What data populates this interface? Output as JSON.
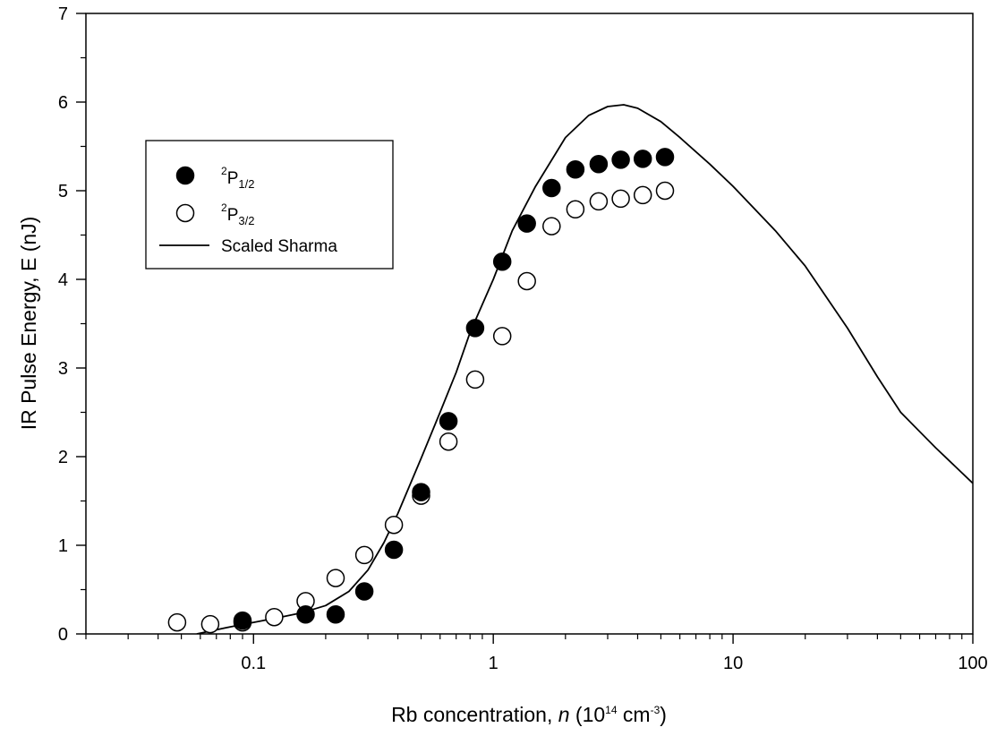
{
  "chart_data": {
    "type": "scatter",
    "xlabel": {
      "pre": "Rb concentration, ",
      "italic": "n",
      "open": " (10",
      "sup1": "14",
      "mid": " cm",
      "sup2": "-3",
      "close": ")"
    },
    "ylabel": "IR Pulse Energy, E (nJ)",
    "x_scale": "log",
    "xlim": [
      0.02,
      100
    ],
    "ylim": [
      0,
      7
    ],
    "x_ticks": [
      {
        "value": 0.1,
        "label": "0.1"
      },
      {
        "value": 1,
        "label": "1"
      },
      {
        "value": 10,
        "label": "10"
      },
      {
        "value": 100,
        "label": "100"
      }
    ],
    "y_ticks": [
      {
        "value": 0,
        "label": "0"
      },
      {
        "value": 1,
        "label": "1"
      },
      {
        "value": 2,
        "label": "2"
      },
      {
        "value": 3,
        "label": "3"
      },
      {
        "value": 4,
        "label": "4"
      },
      {
        "value": 5,
        "label": "5"
      },
      {
        "value": 6,
        "label": "6"
      },
      {
        "value": 7,
        "label": "7"
      }
    ],
    "grid": false,
    "legend_position": "top-left",
    "series": [
      {
        "label": {
          "base": "P",
          "sup": "2",
          "sub": "1/2"
        },
        "marker": "filled-circle",
        "x": [
          0.09,
          0.165,
          0.22,
          0.29,
          0.385,
          0.5,
          0.65,
          0.84,
          1.09,
          1.38,
          1.75,
          2.2,
          2.75,
          3.4,
          4.2,
          5.2
        ],
        "y": [
          0.15,
          0.22,
          0.22,
          0.48,
          0.95,
          1.6,
          2.4,
          3.45,
          4.2,
          4.63,
          5.03,
          5.24,
          5.3,
          5.35,
          5.36,
          5.38
        ]
      },
      {
        "label": {
          "base": "P",
          "sup": "2",
          "sub": "3/2"
        },
        "marker": "open-circle",
        "x": [
          0.048,
          0.066,
          0.09,
          0.122,
          0.165,
          0.22,
          0.29,
          0.385,
          0.5,
          0.65,
          0.84,
          1.09,
          1.38,
          1.75,
          2.2,
          2.75,
          3.4,
          4.2,
          5.2
        ],
        "y": [
          0.13,
          0.11,
          0.13,
          0.19,
          0.37,
          0.63,
          0.89,
          1.23,
          1.56,
          2.17,
          2.87,
          3.36,
          3.98,
          4.6,
          4.79,
          4.88,
          4.91,
          4.95,
          5.0
        ]
      },
      {
        "label": {
          "text": "Scaled Sharma"
        },
        "marker": "line",
        "x": [
          0.058,
          0.08,
          0.1,
          0.13,
          0.16,
          0.2,
          0.25,
          0.3,
          0.35,
          0.4,
          0.5,
          0.6,
          0.7,
          0.8,
          1.0,
          1.2,
          1.5,
          2.0,
          2.5,
          3.0,
          3.5,
          4.0,
          5.0,
          6.0,
          8.0,
          10,
          15,
          20,
          30,
          40,
          50,
          70,
          100
        ],
        "y": [
          0.0,
          0.08,
          0.13,
          0.19,
          0.24,
          0.32,
          0.48,
          0.72,
          1.03,
          1.36,
          1.98,
          2.5,
          2.95,
          3.4,
          4.0,
          4.55,
          5.05,
          5.6,
          5.85,
          5.95,
          5.97,
          5.93,
          5.78,
          5.6,
          5.3,
          5.05,
          4.55,
          4.15,
          3.45,
          2.9,
          2.5,
          2.1,
          1.7
        ]
      }
    ]
  }
}
